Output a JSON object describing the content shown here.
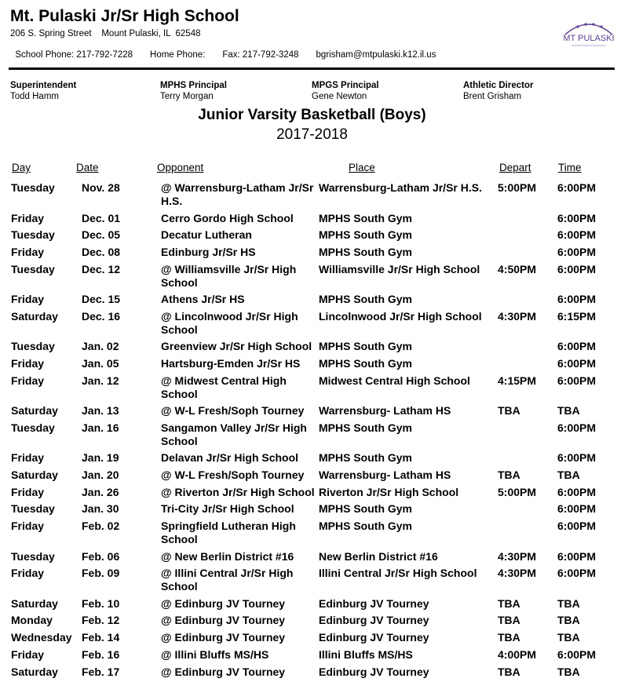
{
  "school": {
    "name": "Mt. Pulaski Jr/Sr High School",
    "address": "206 S. Spring Street    Mount Pulaski, IL  62548",
    "school_phone": "School Phone: 217-792-7228",
    "home_phone": "Home Phone:",
    "fax": "Fax: 217-792-3248",
    "email": "bgrisham@mtpulaski.k12.il.us",
    "logo_text": "MT PULASKI",
    "logo_color": "#5b3f8f"
  },
  "staff": [
    {
      "role": "Superintendent",
      "name": "Todd Hamm"
    },
    {
      "role": "MPHS Principal",
      "name": "Terry Morgan"
    },
    {
      "role": "MPGS Principal",
      "name": "Gene Newton"
    },
    {
      "role": "Athletic Director",
      "name": "Brent Grisham"
    }
  ],
  "title": "Junior Varsity Basketball (Boys)",
  "season": "2017-2018",
  "headers": {
    "day": "Day",
    "date": "Date",
    "opponent": "Opponent",
    "place": "Place",
    "depart": "Depart",
    "time": "Time"
  },
  "rows": [
    {
      "day": "Tuesday",
      "date": "Nov. 28",
      "opponent": "@ Warrensburg-Latham Jr/Sr H.S.",
      "place": "Warrensburg-Latham Jr/Sr H.S.",
      "depart": "5:00PM",
      "time": "6:00PM"
    },
    {
      "day": "Friday",
      "date": "Dec. 01",
      "opponent": "Cerro Gordo High School",
      "place": "MPHS South Gym",
      "depart": "",
      "time": "6:00PM"
    },
    {
      "day": "Tuesday",
      "date": "Dec. 05",
      "opponent": "Decatur Lutheran",
      "place": "MPHS South Gym",
      "depart": "",
      "time": "6:00PM"
    },
    {
      "day": "Friday",
      "date": "Dec. 08",
      "opponent": "Edinburg Jr/Sr HS",
      "place": "MPHS South Gym",
      "depart": "",
      "time": "6:00PM"
    },
    {
      "day": "Tuesday",
      "date": "Dec. 12",
      "opponent": "@ Williamsville Jr/Sr High School",
      "place": "Williamsville Jr/Sr High School",
      "depart": "4:50PM",
      "time": "6:00PM"
    },
    {
      "day": "Friday",
      "date": "Dec. 15",
      "opponent": "Athens Jr/Sr HS",
      "place": "MPHS South Gym",
      "depart": "",
      "time": "6:00PM"
    },
    {
      "day": "Saturday",
      "date": "Dec. 16",
      "opponent": "@ Lincolnwood Jr/Sr High School",
      "place": "Lincolnwood Jr/Sr High School",
      "depart": "4:30PM",
      "time": "6:15PM"
    },
    {
      "day": "Tuesday",
      "date": "Jan. 02",
      "opponent": "Greenview Jr/Sr High School",
      "place": "MPHS South Gym",
      "depart": "",
      "time": "6:00PM"
    },
    {
      "day": "Friday",
      "date": "Jan. 05",
      "opponent": "Hartsburg-Emden Jr/Sr HS",
      "place": "MPHS South Gym",
      "depart": "",
      "time": "6:00PM"
    },
    {
      "day": "Friday",
      "date": "Jan. 12",
      "opponent": "@ Midwest Central High School",
      "place": "Midwest Central High School",
      "depart": "4:15PM",
      "time": "6:00PM"
    },
    {
      "day": "Saturday",
      "date": "Jan. 13",
      "opponent": "@ W-L Fresh/Soph Tourney",
      "place": "Warrensburg- Latham HS",
      "depart": "TBA",
      "time": "TBA"
    },
    {
      "day": "Tuesday",
      "date": "Jan. 16",
      "opponent": "Sangamon Valley Jr/Sr High School",
      "place": "MPHS South Gym",
      "depart": "",
      "time": "6:00PM"
    },
    {
      "day": "Friday",
      "date": "Jan. 19",
      "opponent": "Delavan Jr/Sr High School",
      "place": "MPHS South Gym",
      "depart": "",
      "time": "6:00PM"
    },
    {
      "day": "Saturday",
      "date": "Jan. 20",
      "opponent": "@ W-L Fresh/Soph Tourney",
      "place": "Warrensburg- Latham HS",
      "depart": "TBA",
      "time": "TBA"
    },
    {
      "day": "Friday",
      "date": "Jan. 26",
      "opponent": "@ Riverton Jr/Sr High School",
      "place": "Riverton Jr/Sr High School",
      "depart": "5:00PM",
      "time": "6:00PM"
    },
    {
      "day": "Tuesday",
      "date": "Jan. 30",
      "opponent": "Tri-City Jr/Sr High School",
      "place": "MPHS South Gym",
      "depart": "",
      "time": "6:00PM"
    },
    {
      "day": "Friday",
      "date": "Feb. 02",
      "opponent": "Springfield Lutheran High School",
      "place": "MPHS South Gym",
      "depart": "",
      "time": "6:00PM"
    },
    {
      "day": "Tuesday",
      "date": "Feb. 06",
      "opponent": "@ New Berlin District #16",
      "place": "New Berlin District #16",
      "depart": "4:30PM",
      "time": "6:00PM"
    },
    {
      "day": "Friday",
      "date": "Feb. 09",
      "opponent": "@ Illini Central Jr/Sr High School",
      "place": "Illini Central Jr/Sr High School",
      "depart": "4:30PM",
      "time": "6:00PM"
    },
    {
      "day": "Saturday",
      "date": "Feb. 10",
      "opponent": "@ Edinburg JV Tourney",
      "place": "Edinburg JV Tourney",
      "depart": "TBA",
      "time": "TBA"
    },
    {
      "day": "Monday",
      "date": "Feb. 12",
      "opponent": "@ Edinburg JV Tourney",
      "place": "Edinburg JV Tourney",
      "depart": "TBA",
      "time": "TBA"
    },
    {
      "day": "Wednesday",
      "date": "Feb. 14",
      "opponent": "@ Edinburg JV Tourney",
      "place": "Edinburg JV Tourney",
      "depart": "TBA",
      "time": "TBA"
    },
    {
      "day": "Friday",
      "date": "Feb. 16",
      "opponent": "@ Illini Bluffs MS/HS",
      "place": "Illini Bluffs MS/HS",
      "depart": "4:00PM",
      "time": "6:00PM"
    },
    {
      "day": "Saturday",
      "date": "Feb. 17",
      "opponent": "@ Edinburg JV Tourney",
      "place": "Edinburg JV Tourney",
      "depart": "TBA",
      "time": "TBA"
    }
  ]
}
